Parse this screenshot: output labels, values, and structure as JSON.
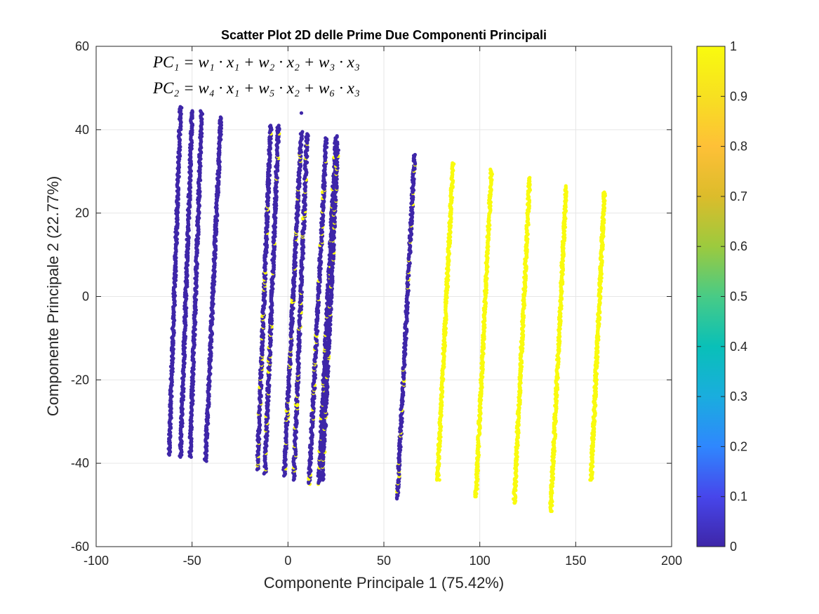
{
  "chart_data": {
    "type": "scatter",
    "title": "Scatter Plot 2D delle Prime Due Componenti Principali",
    "xlabel": "Componente Principale 1 (75.42%)",
    "ylabel": "Componente Principale 2 (22.77%)",
    "xlim": [
      -100,
      200
    ],
    "ylim": [
      -60,
      60
    ],
    "xticks": [
      "-100",
      "-50",
      "0",
      "50",
      "100",
      "150",
      "200"
    ],
    "xtick_values": [
      -100,
      -50,
      0,
      50,
      100,
      150,
      200
    ],
    "yticks": [
      "-60",
      "-40",
      "-20",
      "0",
      "20",
      "40",
      "60"
    ],
    "ytick_values": [
      -60,
      -40,
      -20,
      0,
      20,
      40,
      60
    ],
    "grid": true,
    "colormap": "parula",
    "colorbar": {
      "range": [
        0,
        1
      ],
      "ticks": [
        "0",
        "0.1",
        "0.2",
        "0.3",
        "0.4",
        "0.5",
        "0.6",
        "0.7",
        "0.8",
        "0.9",
        "1"
      ],
      "tick_values": [
        0,
        0.1,
        0.2,
        0.3,
        0.4,
        0.5,
        0.6,
        0.7,
        0.8,
        0.9,
        1
      ],
      "stops": [
        "#3e26a8",
        "#4746eb",
        "#2f87fe",
        "#1aadde",
        "#09c0b8",
        "#48cb86",
        "#9cca3e",
        "#dcbc2b",
        "#fec037",
        "#f7e021",
        "#f9fb0e"
      ]
    },
    "class_colors": {
      "0": "#3e26a8",
      "1": "#f9fb0e"
    },
    "annotations": {
      "pc1": "PC₁ = w₁ · x₁ + w₂ · x₂ + w₃ · x₃",
      "pc2": "PC₂ = w₄ · x₁ + w₅ · x₂ + w₆ · x₃"
    },
    "clusters": [
      {
        "x_low": -62,
        "x_high": -56,
        "y_low": -38,
        "y_high": 45.5,
        "class": 0
      },
      {
        "x_low": -56,
        "x_high": -50,
        "y_low": -38.5,
        "y_high": 44.5,
        "class": 0
      },
      {
        "x_low": -51,
        "x_high": -45,
        "y_low": -38.5,
        "y_high": 44.5,
        "class": 0
      },
      {
        "x_low": -43,
        "x_high": -35,
        "y_low": -39.5,
        "y_high": 43,
        "class": 0
      },
      {
        "x_low": -16,
        "x_high": -9,
        "y_low": -41.5,
        "y_high": 41,
        "class": 0,
        "minority_class": 1
      },
      {
        "x_low": -12,
        "x_high": -5,
        "y_low": -42.5,
        "y_high": 41,
        "class": 0,
        "minority_class": 1
      },
      {
        "x_low": -2,
        "x_high": 7,
        "y_low": -43,
        "y_high": 39.5,
        "class": 0,
        "minority_class": 1
      },
      {
        "x_low": 3,
        "x_high": 10,
        "y_low": -44,
        "y_high": 39,
        "class": 0,
        "minority_class": 1
      },
      {
        "x_low": 11,
        "x_high": 20,
        "y_low": -45,
        "y_high": 38,
        "class": 0,
        "minority_class": 1
      },
      {
        "x_low": 16,
        "x_high": 25,
        "y_low": -45,
        "y_high": 38.5,
        "class": 0,
        "minority_class": 1
      },
      {
        "x_low": 18,
        "x_high": 26,
        "y_low": -44,
        "y_high": 37,
        "class": 0,
        "minority_class": 1
      },
      {
        "x_low": 57,
        "x_high": 66,
        "y_low": -48.5,
        "y_high": 34,
        "class": 0,
        "minority_class": 1
      },
      {
        "x_low": 78,
        "x_high": 86,
        "y_low": -44,
        "y_high": 32,
        "class": 1
      },
      {
        "x_low": 98,
        "x_high": 106,
        "y_low": -48,
        "y_high": 30.5,
        "class": 1
      },
      {
        "x_low": 118,
        "x_high": 126,
        "y_low": -49.5,
        "y_high": 28.5,
        "class": 1
      },
      {
        "x_low": 137,
        "x_high": 145,
        "y_low": -51.5,
        "y_high": 26.5,
        "class": 1
      },
      {
        "x_low": 158,
        "x_high": 165,
        "y_low": -44,
        "y_high": 25,
        "class": 1
      }
    ],
    "outliers": [
      {
        "x": 7,
        "y": 44,
        "class": 0
      },
      {
        "x": 5,
        "y": -26,
        "class": 1
      },
      {
        "x": 79,
        "y": -44,
        "class": 1
      },
      {
        "x": 98,
        "y": -46,
        "class": 1
      },
      {
        "x": 98,
        "y": -48,
        "class": 1
      },
      {
        "x": 118,
        "y": -45,
        "class": 1
      },
      {
        "x": 118,
        "y": -49.5,
        "class": 1
      },
      {
        "x": 137,
        "y": -49,
        "class": 1
      },
      {
        "x": 137,
        "y": -51.5,
        "class": 1
      },
      {
        "x": 158,
        "y": -44,
        "class": 1
      }
    ]
  }
}
